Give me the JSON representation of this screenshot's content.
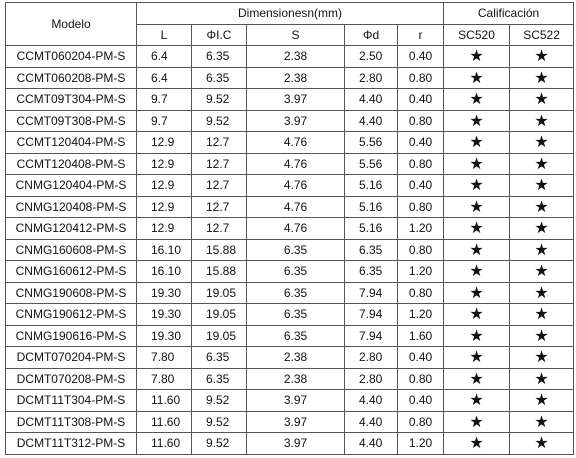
{
  "header": {
    "model": "Modelo",
    "dimensions": "Dimensionesn(mm)",
    "rating": "Calificación",
    "columns": [
      "L",
      "ΦI.C",
      "S",
      "Φd",
      "r",
      "SC520",
      "SC522"
    ]
  },
  "table": {
    "rows": [
      [
        "CCMT060204-PM-S",
        "6.4",
        "6.35",
        "2.38",
        "2.50",
        "0.40",
        "★",
        "★"
      ],
      [
        "CCMT060208-PM-S",
        "6.4",
        "6.35",
        "2.38",
        "2.80",
        "0.80",
        "★",
        "★"
      ],
      [
        "CCMT09T304-PM-S",
        "9.7",
        "9.52",
        "3.97",
        "4.40",
        "0.40",
        "★",
        "★"
      ],
      [
        "CCMT09T308-PM-S",
        "9.7",
        "9.52",
        "3.97",
        "4.40",
        "0.80",
        "★",
        "★"
      ],
      [
        "CCMT120404-PM-S",
        "12.9",
        "12.7",
        "4.76",
        "5.56",
        "0.40",
        "★",
        "★"
      ],
      [
        "CCMT120408-PM-S",
        "12.9",
        "12.7",
        "4.76",
        "5.56",
        "0.80",
        "★",
        "★"
      ],
      [
        "CNMG120404-PM-S",
        "12.9",
        "12.7",
        "4.76",
        "5.16",
        "0.40",
        "★",
        "★"
      ],
      [
        "CNMG120408-PM-S",
        "12.9",
        "12.7",
        "4.76",
        "5.16",
        "0.80",
        "★",
        "★"
      ],
      [
        "CNMG120412-PM-S",
        "12.9",
        "12.7",
        "4.76",
        "5.16",
        "1.20",
        "★",
        "★"
      ],
      [
        "CNMG160608-PM-S",
        "16.10",
        "15.88",
        "6.35",
        "6.35",
        "0.80",
        "★",
        "★"
      ],
      [
        "CNMG160612-PM-S",
        "16.10",
        "15.88",
        "6.35",
        "6.35",
        "1.20",
        "★",
        "★"
      ],
      [
        "CNMG190608-PM-S",
        "19.30",
        "19.05",
        "6.35",
        "7.94",
        "0.80",
        "★",
        "★"
      ],
      [
        "CNMG190612-PM-S",
        "19.30",
        "19.05",
        "6.35",
        "7.94",
        "1.20",
        "★",
        "★"
      ],
      [
        "CNMG190616-PM-S",
        "19.30",
        "19.05",
        "6.35",
        "7.94",
        "1.60",
        "★",
        "★"
      ],
      [
        "DCMT070204-PM-S",
        "7.80",
        "6.35",
        "2.38",
        "2.80",
        "0.40",
        "★",
        "★"
      ],
      [
        "DCMT070208-PM-S",
        "7.80",
        "6.35",
        "2.38",
        "2.80",
        "0.80",
        "★",
        "★"
      ],
      [
        "DCMT11T304-PM-S",
        "11.60",
        "9.52",
        "3.97",
        "4.40",
        "0.40",
        "★",
        "★"
      ],
      [
        "DCMT11T308-PM-S",
        "11.60",
        "9.52",
        "3.97",
        "4.40",
        "0.80",
        "★",
        "★"
      ],
      [
        "DCMT11T312-PM-S",
        "11.60",
        "9.52",
        "3.97",
        "4.40",
        "1.20",
        "★",
        "★"
      ]
    ]
  }
}
